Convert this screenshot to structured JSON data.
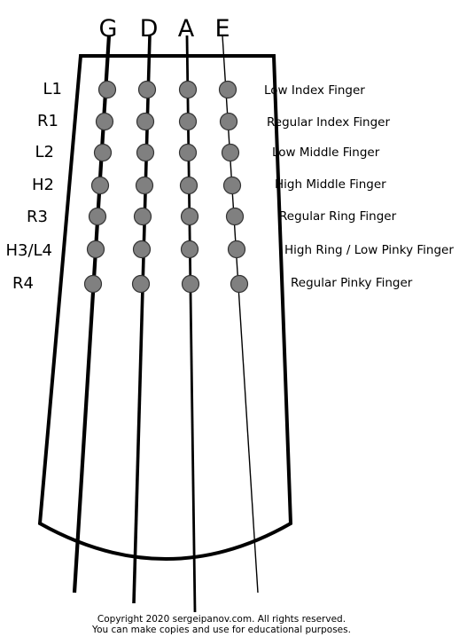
{
  "strings": [
    {
      "name": "G"
    },
    {
      "name": "D"
    },
    {
      "name": "A"
    },
    {
      "name": "E"
    }
  ],
  "positions": [
    {
      "label": "L1",
      "finger": "Low Index Finger"
    },
    {
      "label": "R1",
      "finger": "Regular Index Finger"
    },
    {
      "label": "L2",
      "finger": "Low Middle Finger"
    },
    {
      "label": "H2",
      "finger": "High Middle Finger"
    },
    {
      "label": "R3",
      "finger": "Regular Ring Finger"
    },
    {
      "label": "H3/L4",
      "finger": "High Ring / Low Pinky Finger"
    },
    {
      "label": "R4",
      "finger": "Regular Pinky Finger"
    }
  ],
  "copyright": {
    "line1": "Copyright 2020 sergeipanov.com. All rights reserved.",
    "line2": "You can make copies and use for educational purposes."
  },
  "colors": {
    "outline": "#000000",
    "dot_fill": "#808080",
    "dot_stroke": "#333333",
    "background": "#ffffff"
  }
}
